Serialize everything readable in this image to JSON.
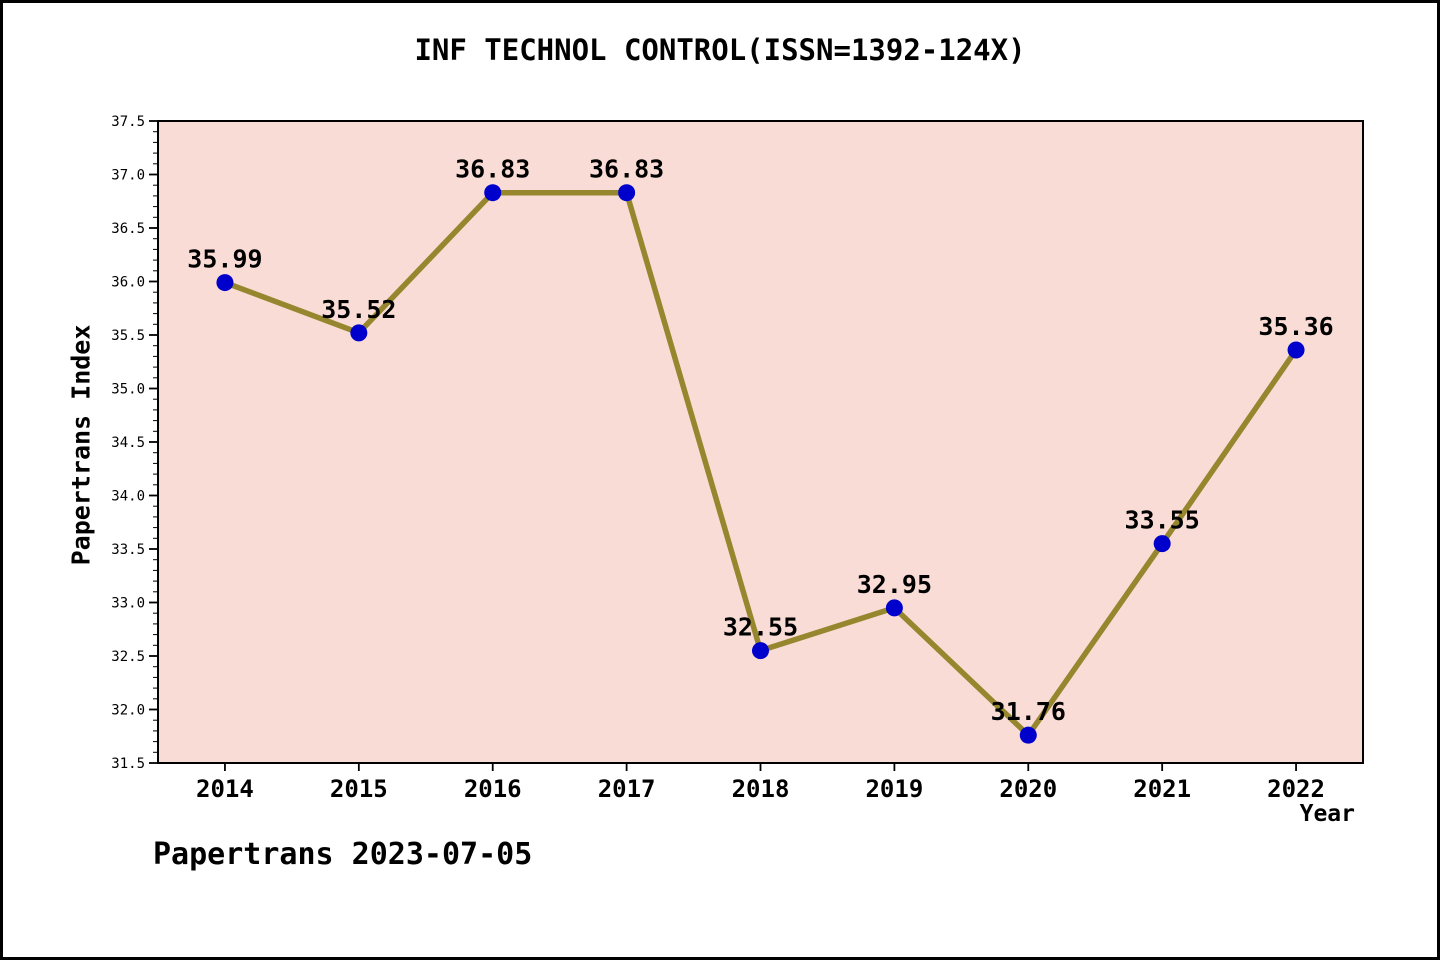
{
  "title": "INF TECHNOL CONTROL(ISSN=1392-124X)",
  "footer": "Papertrans 2023-07-05",
  "chart_data": {
    "type": "line",
    "title": "INF TECHNOL CONTROL(ISSN=1392-124X)",
    "xlabel": "Year",
    "ylabel": "Papertrans Index",
    "x": [
      2014,
      2015,
      2016,
      2017,
      2018,
      2019,
      2020,
      2021,
      2022
    ],
    "values": [
      35.99,
      35.52,
      36.83,
      36.83,
      32.55,
      32.95,
      31.76,
      33.55,
      35.36
    ],
    "point_labels": [
      "35.99",
      "35.52",
      "36.83",
      "36.83",
      "32.55",
      "32.95",
      "31.76",
      "33.55",
      "35.36"
    ],
    "ylim": [
      31.5,
      37.5
    ],
    "ytick_step": 0.5,
    "ytick_minor_step": 0.1,
    "grid": false,
    "legend": "none",
    "colors": {
      "plot_bg": "#fadcd6",
      "line": "#96862e",
      "marker": "#0000cd",
      "text": "#000000",
      "axis": "#000000"
    }
  }
}
